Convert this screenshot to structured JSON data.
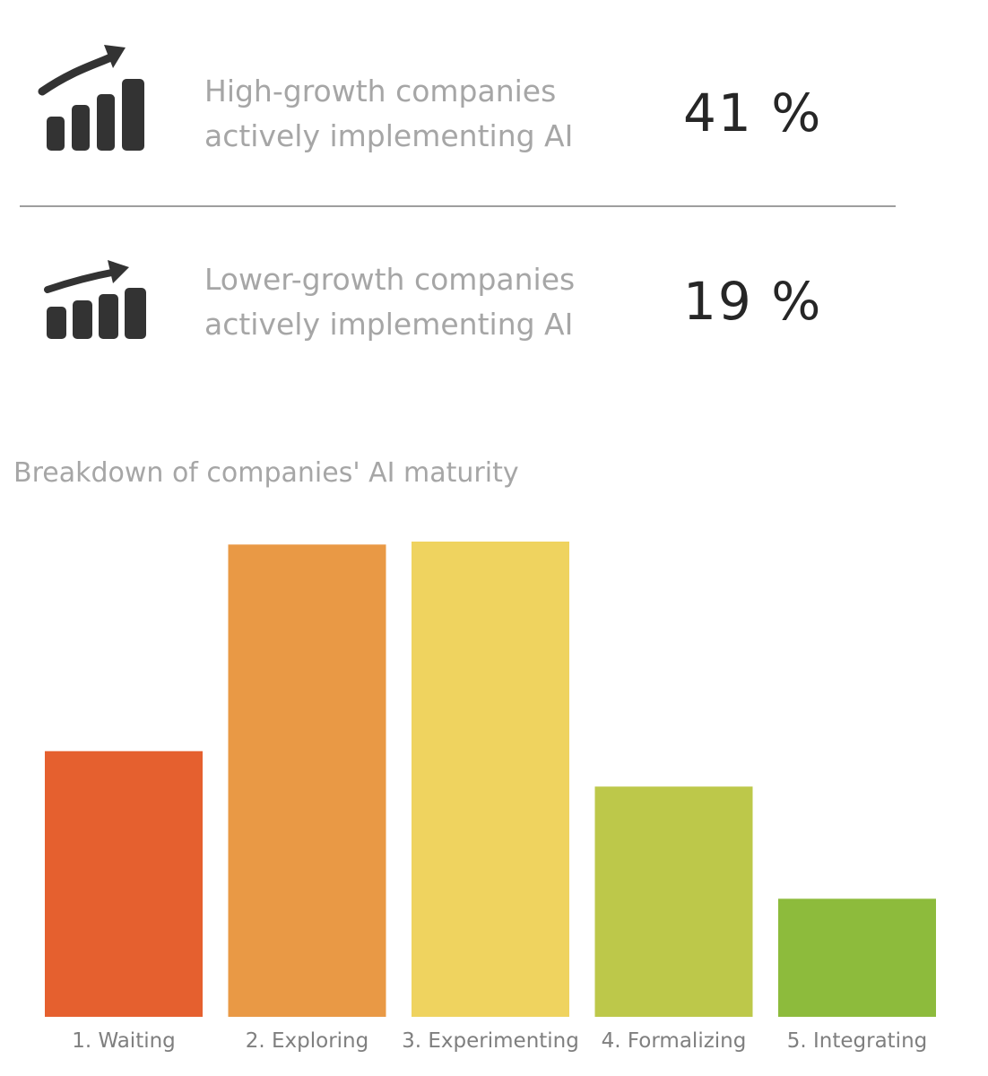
{
  "stats": [
    {
      "icon": "growth-chart-arrow-icon",
      "label_line1": "High-growth companies",
      "label_line2": "actively implementing AI",
      "value": "41 %"
    },
    {
      "icon": "growth-chart-arrow-icon",
      "label_line1": "Lower-growth companies",
      "label_line2": "actively implementing AI",
      "value": "19 %"
    }
  ],
  "chart_data": {
    "type": "bar",
    "title": "Breakdown of companies' AI maturity",
    "categories": [
      "1. Waiting",
      "2. Exploring",
      "3. Experimenting",
      "4. Formalizing",
      "5. Integrating"
    ],
    "values": [
      18,
      32,
      32.2,
      15.6,
      8
    ],
    "colors": [
      "#e5602f",
      "#e99945",
      "#efd35f",
      "#bdc84a",
      "#8dbb3c"
    ],
    "ylim": [
      0,
      32.2
    ],
    "grid": false,
    "legend": "none"
  }
}
